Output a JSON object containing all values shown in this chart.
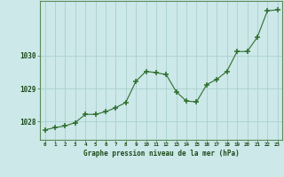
{
  "x": [
    0,
    1,
    2,
    3,
    4,
    5,
    6,
    7,
    8,
    9,
    10,
    11,
    12,
    13,
    14,
    15,
    16,
    17,
    18,
    19,
    20,
    21,
    22,
    23
  ],
  "y": [
    1027.75,
    1027.82,
    1027.87,
    1027.97,
    1028.22,
    1028.22,
    1028.3,
    1028.42,
    1028.58,
    1029.22,
    1029.52,
    1029.48,
    1029.42,
    1028.9,
    1028.62,
    1028.6,
    1029.12,
    1029.28,
    1029.52,
    1030.12,
    1030.12,
    1030.55,
    1031.35,
    1031.38
  ],
  "ylim": [
    1027.45,
    1031.65
  ],
  "yticks": [
    1028,
    1029,
    1030
  ],
  "xticks": [
    0,
    1,
    2,
    3,
    4,
    5,
    6,
    7,
    8,
    9,
    10,
    11,
    12,
    13,
    14,
    15,
    16,
    17,
    18,
    19,
    20,
    21,
    22,
    23
  ],
  "line_color": "#2d6e2d",
  "marker_color": "#2d6e2d",
  "bg_color": "#cce8e8",
  "grid_color": "#aacfcf",
  "xlabel": "Graphe pression niveau de la mer (hPa)",
  "xlabel_color": "#1a4a1a",
  "tick_color": "#1a4a1a",
  "spine_color": "#5a8a5a"
}
